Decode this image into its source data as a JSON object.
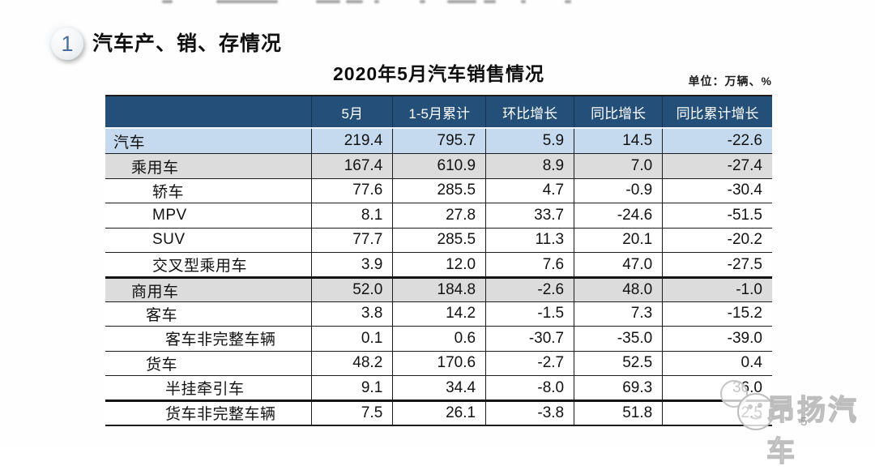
{
  "slide": {
    "section_number": "1",
    "section_title": "汽车产、销、存情况",
    "table_title": "2020年5月汽车销售情况",
    "unit_label": "单位：万辆、%",
    "watermark_text": "昂扬汽车",
    "page_number": "5"
  },
  "colors": {
    "header_bg": "#234F78",
    "header_text": "#FFFFFF",
    "row_blue": "#C6DAEF",
    "row_gray": "#DCDCDC",
    "border_dark": "#1C1C1C",
    "bullet_number": "#4A6E9C",
    "watermark_gray": "#BDBDBD",
    "page_number_gray": "#9B9B9B"
  },
  "table": {
    "columns": [
      "",
      "5月",
      "1-5月累计",
      "环比增长",
      "同比增长",
      "同比累计增长"
    ],
    "rows": [
      {
        "label": "汽车",
        "indent": 0,
        "bg": "blue",
        "thick_top": false,
        "values": [
          "219.4",
          "795.7",
          "5.9",
          "14.5",
          "-22.6"
        ]
      },
      {
        "label": "乘用车",
        "indent": 1,
        "bg": "gray",
        "thick_top": false,
        "values": [
          "167.4",
          "610.9",
          "8.9",
          "7.0",
          "-27.4"
        ]
      },
      {
        "label": "轿车",
        "indent": 3,
        "bg": "white",
        "thick_top": false,
        "values": [
          "77.6",
          "285.5",
          "4.7",
          "-0.9",
          "-30.4"
        ]
      },
      {
        "label": "MPV",
        "indent": 3,
        "bg": "white",
        "thick_top": false,
        "values": [
          "8.1",
          "27.8",
          "33.7",
          "-24.6",
          "-51.5"
        ]
      },
      {
        "label": "SUV",
        "indent": 3,
        "bg": "white",
        "thick_top": false,
        "values": [
          "77.7",
          "285.5",
          "11.3",
          "20.1",
          "-20.2"
        ]
      },
      {
        "label": "交叉型乘用车",
        "indent": 3,
        "bg": "white",
        "thick_top": false,
        "values": [
          "3.9",
          "12.0",
          "7.6",
          "47.0",
          "-27.5"
        ]
      },
      {
        "label": "商用车",
        "indent": 1,
        "bg": "gray",
        "thick_top": true,
        "values": [
          "52.0",
          "184.8",
          "-2.6",
          "48.0",
          "-1.0"
        ]
      },
      {
        "label": "客车",
        "indent": 2,
        "bg": "white",
        "thick_top": false,
        "values": [
          "3.8",
          "14.2",
          "-1.5",
          "7.3",
          "-15.2"
        ]
      },
      {
        "label": "客车非完整车辆",
        "indent": 4,
        "bg": "white",
        "thick_top": false,
        "values": [
          "0.1",
          "0.6",
          "-30.7",
          "-35.0",
          "-39.0"
        ]
      },
      {
        "label": "货车",
        "indent": 2,
        "bg": "white",
        "thick_top": false,
        "values": [
          "48.2",
          "170.6",
          "-2.7",
          "52.5",
          "0.4"
        ]
      },
      {
        "label": "半挂牵引车",
        "indent": 4,
        "bg": "white",
        "thick_top": false,
        "values": [
          "9.1",
          "34.4",
          "-8.0",
          "69.3",
          "36.0"
        ]
      },
      {
        "label": "货车非完整车辆",
        "indent": 4,
        "bg": "white",
        "thick_top": true,
        "values": [
          "7.5",
          "26.1",
          "-3.8",
          "51.8",
          "2.5"
        ]
      }
    ]
  }
}
